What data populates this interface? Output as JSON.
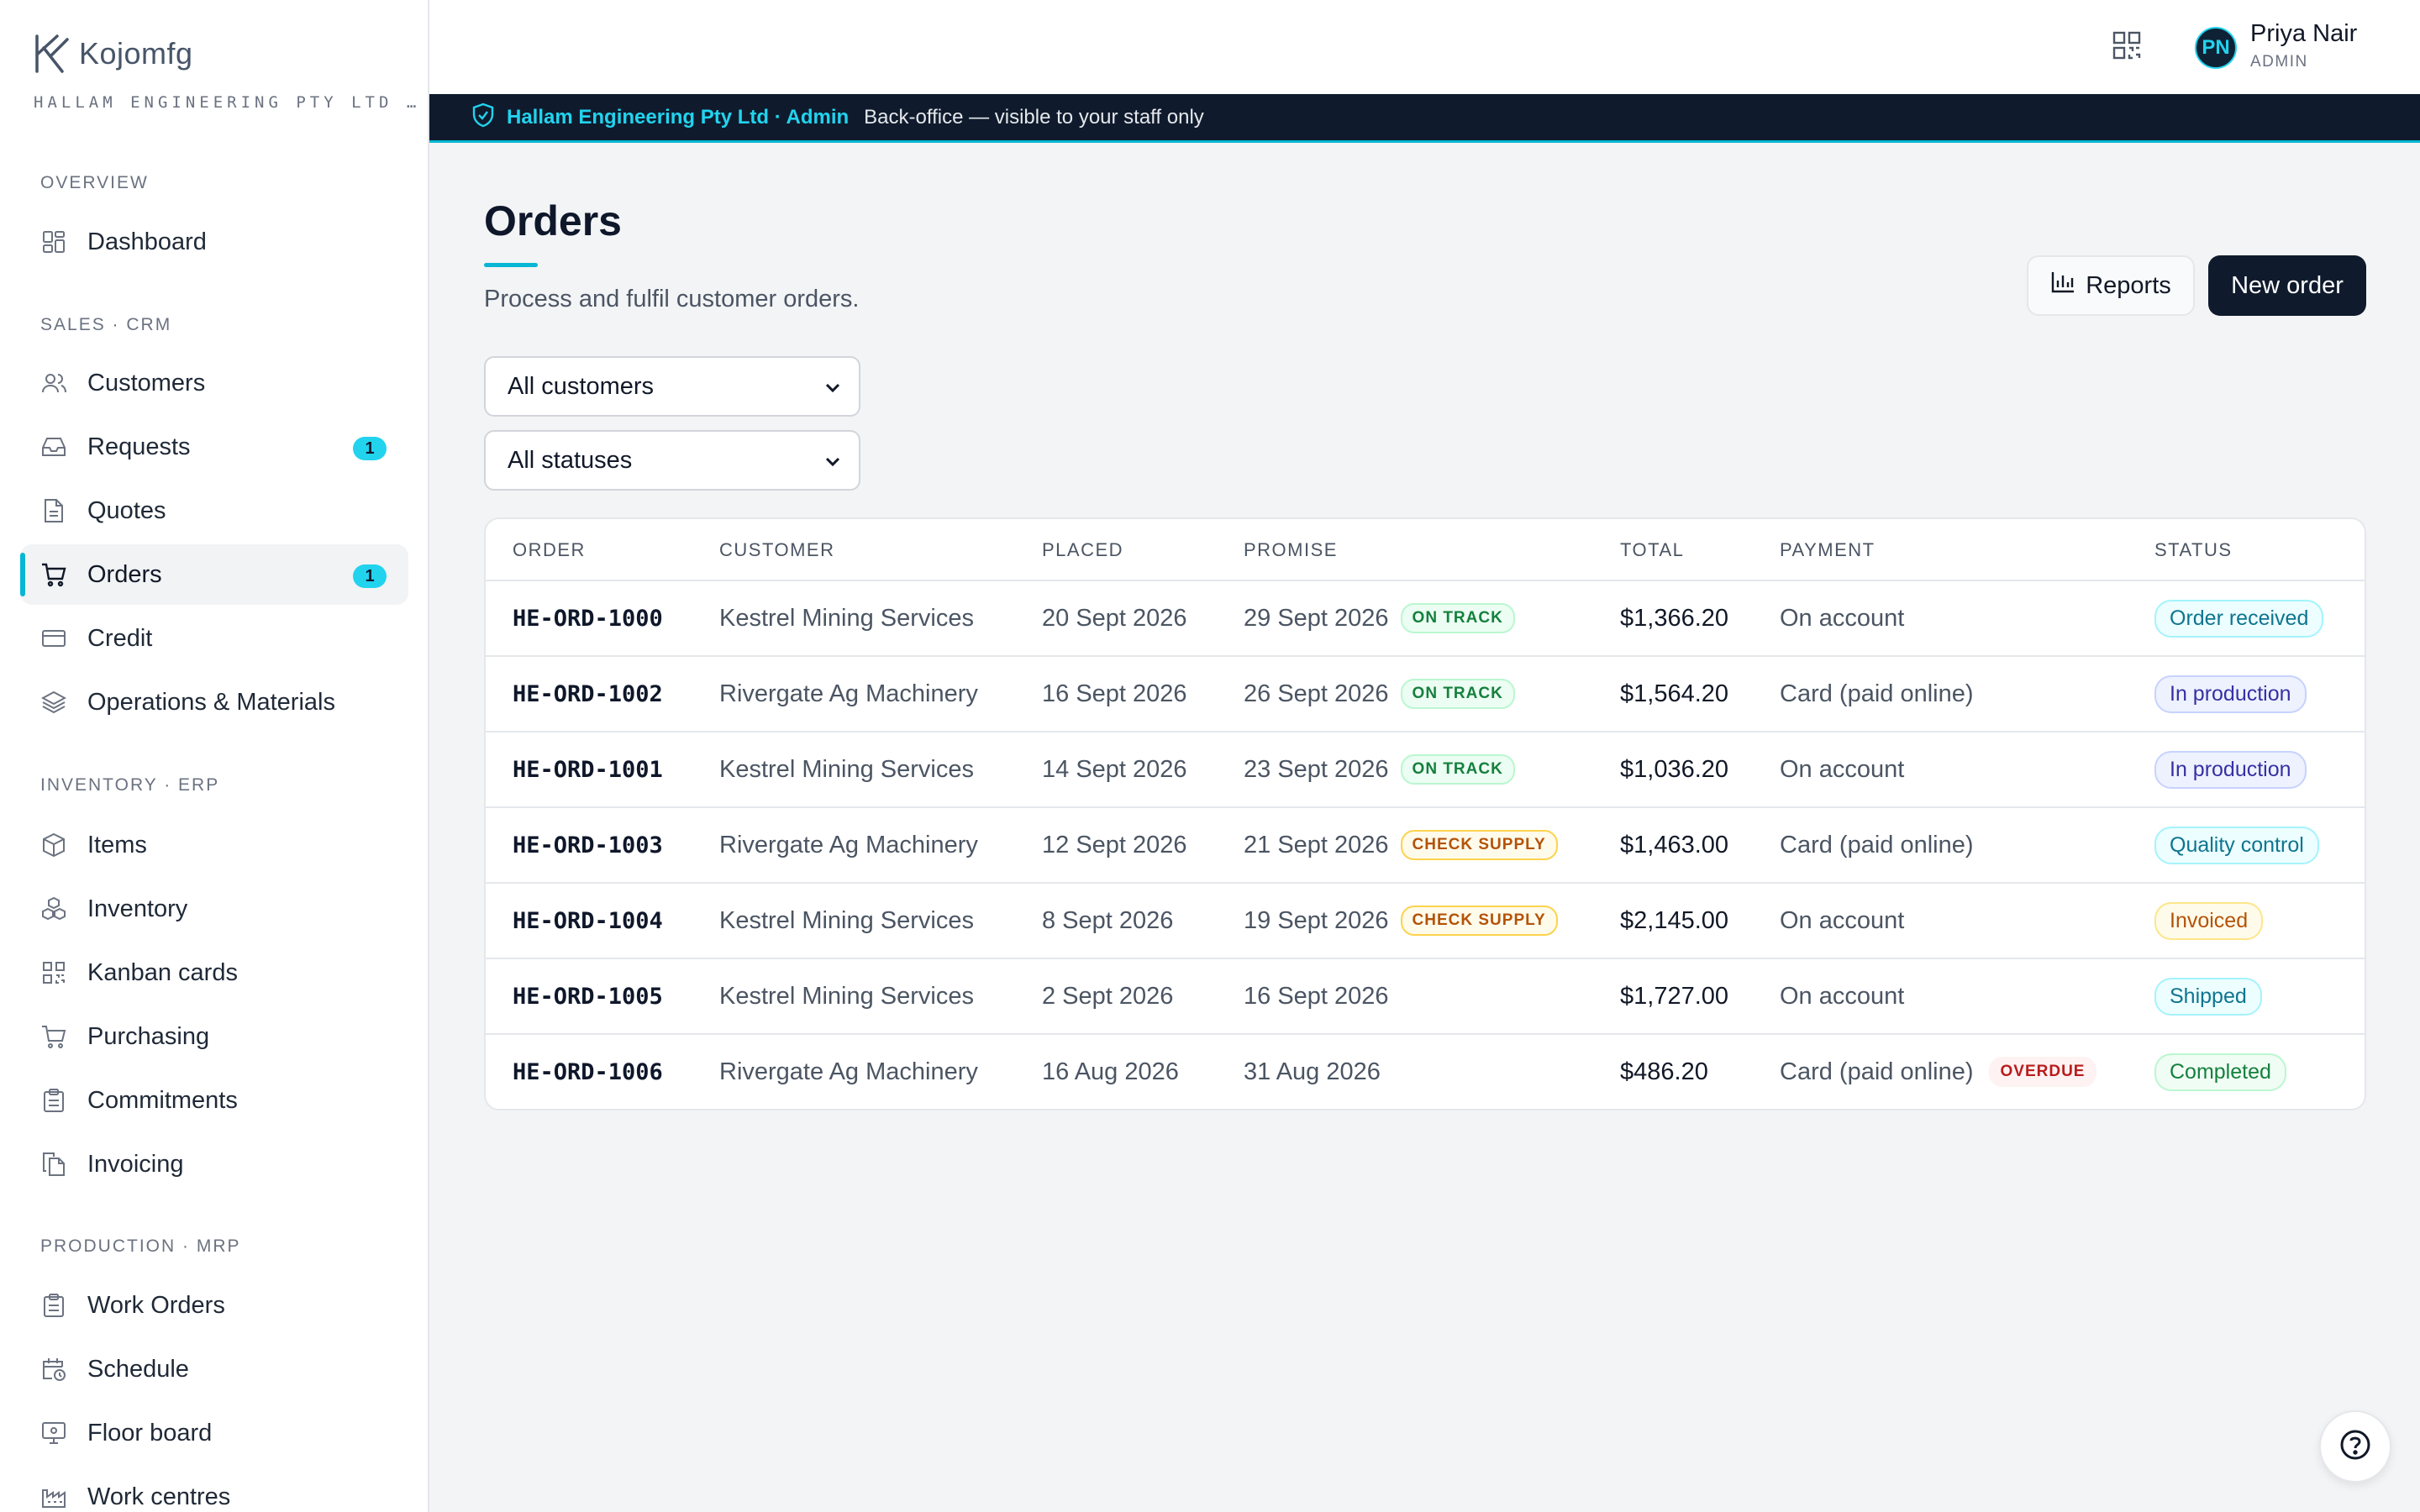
{
  "brand": {
    "name": "Kojomfg",
    "org": "HALLAM ENGINEERING PTY LTD …"
  },
  "sidebar": {
    "sections": [
      {
        "label": "OVERVIEW",
        "items": [
          {
            "label": "Dashboard",
            "icon": "dashboard-icon"
          }
        ]
      },
      {
        "label": "SALES · CRM",
        "items": [
          {
            "label": "Customers",
            "icon": "users-icon"
          },
          {
            "label": "Requests",
            "icon": "inbox-icon",
            "badge": "1"
          },
          {
            "label": "Quotes",
            "icon": "document-icon"
          },
          {
            "label": "Orders",
            "icon": "cart-icon",
            "badge": "1",
            "active": true
          },
          {
            "label": "Credit",
            "icon": "credit-card-icon"
          },
          {
            "label": "Operations & Materials",
            "icon": "layers-icon"
          }
        ]
      },
      {
        "label": "INVENTORY · ERP",
        "items": [
          {
            "label": "Items",
            "icon": "box-icon"
          },
          {
            "label": "Inventory",
            "icon": "boxes-icon"
          },
          {
            "label": "Kanban cards",
            "icon": "qr-icon"
          },
          {
            "label": "Purchasing",
            "icon": "cart-icon"
          },
          {
            "label": "Commitments",
            "icon": "clipboard-icon"
          },
          {
            "label": "Invoicing",
            "icon": "copy-icon"
          }
        ]
      },
      {
        "label": "PRODUCTION · MRP",
        "items": [
          {
            "label": "Work Orders",
            "icon": "clipboard-icon"
          },
          {
            "label": "Schedule",
            "icon": "calendar-clock-icon"
          },
          {
            "label": "Floor board",
            "icon": "monitor-icon"
          },
          {
            "label": "Work centres",
            "icon": "factory-icon"
          }
        ]
      }
    ]
  },
  "user": {
    "initials": "PN",
    "name": "Priya Nair",
    "role": "ADMIN"
  },
  "banner": {
    "org": "Hallam Engineering Pty Ltd · Admin",
    "note": "Back-office — visible to your staff only"
  },
  "page": {
    "title": "Orders",
    "subtitle": "Process and fulfil customer orders.",
    "reports_label": "Reports",
    "new_order_label": "New order"
  },
  "filters": {
    "customer": "All customers",
    "status": "All statuses"
  },
  "table": {
    "headers": [
      "ORDER",
      "CUSTOMER",
      "PLACED",
      "PROMISE",
      "TOTAL",
      "PAYMENT",
      "STATUS"
    ],
    "rows": [
      {
        "order": "HE-ORD-1000",
        "customer": "Kestrel Mining Services",
        "placed": "20 Sept 2026",
        "promise": "29 Sept 2026",
        "promise_flag": "ON TRACK",
        "total": "$1,366.20",
        "payment": "On account",
        "payment_flag": "",
        "status": "Order received",
        "status_key": "st-received"
      },
      {
        "order": "HE-ORD-1002",
        "customer": "Rivergate Ag Machinery",
        "placed": "16 Sept 2026",
        "promise": "26 Sept 2026",
        "promise_flag": "ON TRACK",
        "total": "$1,564.20",
        "payment": "Card (paid online)",
        "payment_flag": "",
        "status": "In production",
        "status_key": "st-production"
      },
      {
        "order": "HE-ORD-1001",
        "customer": "Kestrel Mining Services",
        "placed": "14 Sept 2026",
        "promise": "23 Sept 2026",
        "promise_flag": "ON TRACK",
        "total": "$1,036.20",
        "payment": "On account",
        "payment_flag": "",
        "status": "In production",
        "status_key": "st-production"
      },
      {
        "order": "HE-ORD-1003",
        "customer": "Rivergate Ag Machinery",
        "placed": "12 Sept 2026",
        "promise": "21 Sept 2026",
        "promise_flag": "CHECK SUPPLY",
        "total": "$1,463.00",
        "payment": "Card (paid online)",
        "payment_flag": "",
        "status": "Quality control",
        "status_key": "st-qc"
      },
      {
        "order": "HE-ORD-1004",
        "customer": "Kestrel Mining Services",
        "placed": "8 Sept 2026",
        "promise": "19 Sept 2026",
        "promise_flag": "CHECK SUPPLY",
        "total": "$2,145.00",
        "payment": "On account",
        "payment_flag": "",
        "status": "Invoiced",
        "status_key": "st-invoiced"
      },
      {
        "order": "HE-ORD-1005",
        "customer": "Kestrel Mining Services",
        "placed": "2 Sept 2026",
        "promise": "16 Sept 2026",
        "promise_flag": "",
        "total": "$1,727.00",
        "payment": "On account",
        "payment_flag": "",
        "status": "Shipped",
        "status_key": "st-shipped"
      },
      {
        "order": "HE-ORD-1006",
        "customer": "Rivergate Ag Machinery",
        "placed": "16 Aug 2026",
        "promise": "31 Aug 2026",
        "promise_flag": "",
        "total": "$486.20",
        "payment": "Card (paid online)",
        "payment_flag": "OVERDUE",
        "status": "Completed",
        "status_key": "st-completed"
      }
    ]
  },
  "colors": {
    "accent": "#06b6d4",
    "navy": "#0f1b2d"
  }
}
